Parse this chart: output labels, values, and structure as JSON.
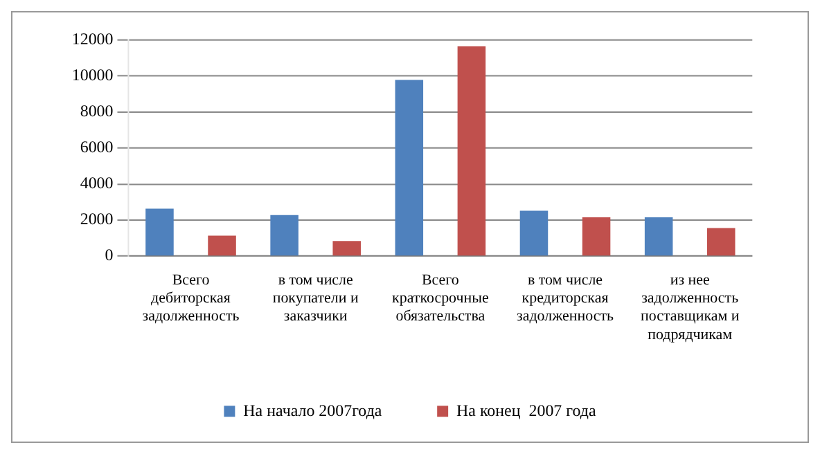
{
  "chart_data": {
    "type": "bar",
    "categories": [
      "Всего дебиторская задолженность",
      "в том числе покупатели и заказчики",
      "Всего краткосрочные обязательства",
      "в том числе кредиторская задолженность",
      "из нее задолженность поставщикам и подрядчикам"
    ],
    "series": [
      {
        "name": "На начало 2007года",
        "color": "#4f81bd",
        "values": [
          2640,
          2280,
          9780,
          2520,
          2160
        ]
      },
      {
        "name": "На конец  2007 года",
        "color": "#c0504d",
        "values": [
          1140,
          840,
          11640,
          2160,
          1560
        ]
      }
    ],
    "ylim": [
      0,
      12000
    ],
    "yticks": [
      0,
      2000,
      4000,
      6000,
      8000,
      10000,
      12000
    ],
    "grid": "y",
    "legend": "bottom"
  }
}
